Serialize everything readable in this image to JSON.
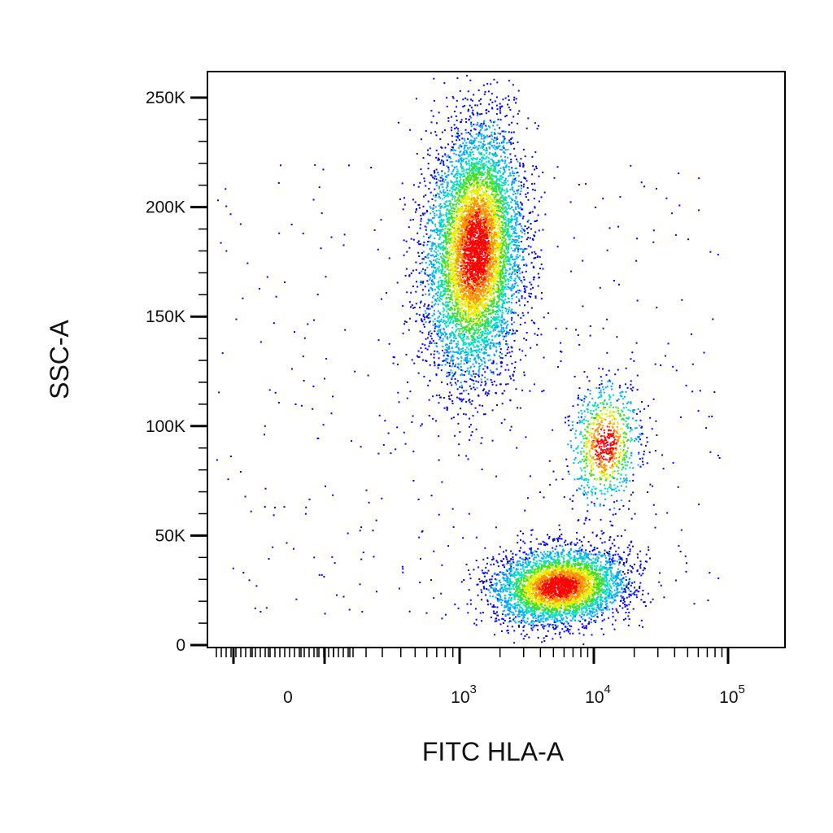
{
  "chart_data": {
    "type": "scatter",
    "subtype": "flow-cytometry density dot plot",
    "title": "",
    "xlabel": "FITC HLA-A",
    "ylabel": "SSC-A",
    "x_scale": "biexponential",
    "y_scale": "linear",
    "xlim": [
      -150,
      120000
    ],
    "ylim": [
      0,
      262144
    ],
    "y_ticks": [
      {
        "value": 0,
        "label": "0"
      },
      {
        "value": 50000,
        "label": "50K"
      },
      {
        "value": 100000,
        "label": "100K"
      },
      {
        "value": 150000,
        "label": "150K"
      },
      {
        "value": 200000,
        "label": "200K"
      },
      {
        "value": 250000,
        "label": "250K"
      }
    ],
    "x_ticks": [
      {
        "value": 0,
        "base": "0",
        "exp": ""
      },
      {
        "value": 1000,
        "base": "10",
        "exp": "3"
      },
      {
        "value": 10000,
        "base": "10",
        "exp": "4"
      },
      {
        "value": 100000,
        "base": "10",
        "exp": "5"
      }
    ],
    "color_scale": [
      "#0000ff",
      "#00a8ff",
      "#00e0c0",
      "#40e020",
      "#e8f000",
      "#ff9000",
      "#ff0000"
    ],
    "grid": false,
    "legend": "none",
    "populations": [
      {
        "center_x": 1300,
        "center_y": 180000,
        "spread_log_x": 0.17,
        "spread_y": 28000,
        "events": 7000
      },
      {
        "center_x": 5500,
        "center_y": 27000,
        "spread_log_x": 0.24,
        "spread_y": 8500,
        "events": 4200
      },
      {
        "center_x": 12000,
        "center_y": 92000,
        "spread_log_x": 0.13,
        "spread_y": 14000,
        "events": 900
      }
    ]
  }
}
